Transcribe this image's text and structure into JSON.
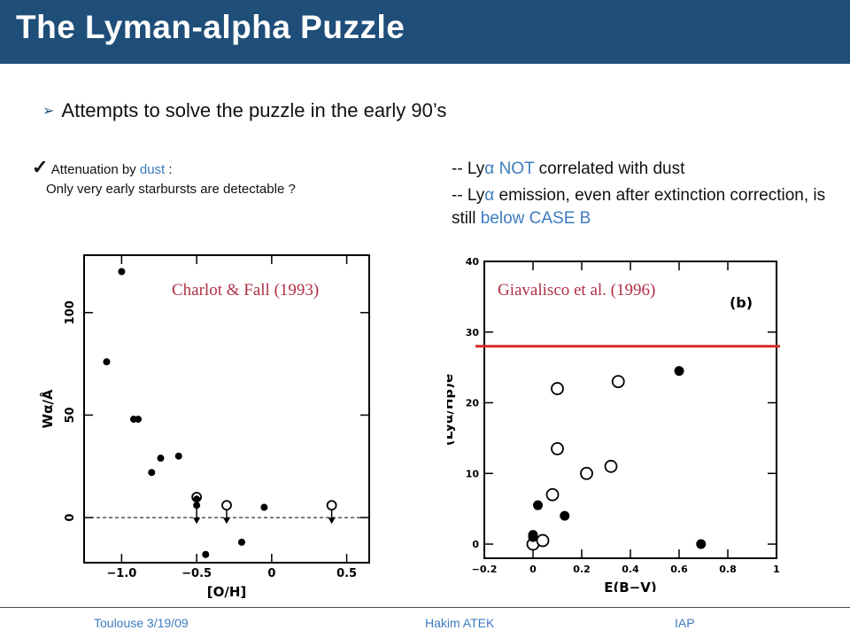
{
  "slide": {
    "title": "The Lyman-alpha Puzzle",
    "bullet": "Attempts to solve the puzzle in the early 90’s",
    "left_note": {
      "line1_prefix": "Attenuation by ",
      "line1_accent": "dust",
      "line1_suffix": " :",
      "line2": "Only very early starbursts are detectable ?"
    },
    "right_notes": {
      "item1_prefix": "-- Ly",
      "item1_accent": "NOT",
      "item1_suffix": " correlated with dust",
      "item2_prefix": "-- Ly",
      "item2_suffix": " emission, even after extinction correction, is still ",
      "item2_accent": "below CASE B",
      "alpha": "α"
    },
    "captions": {
      "left": "Charlot & Fall (1993)",
      "right": "Giavalisco et al. (1996)"
    },
    "footer": {
      "left": "Toulouse 3/19/09",
      "center": "Hakim ATEK",
      "right": "IAP"
    },
    "colors": {
      "header": "#1f4e79",
      "accent": "#3d7cbf",
      "caption": "#b03045",
      "case_b_line": "#d62b2b"
    }
  },
  "chart_data": [
    {
      "type": "scatter",
      "xlabel": "[O/H]",
      "ylabel": "Wα/Å",
      "xlim": [
        -1.25,
        0.65
      ],
      "ylim": [
        -22,
        128
      ],
      "xticks": [
        -1.0,
        -0.5,
        0,
        0.5
      ],
      "xtick_labels": [
        "−1.0",
        "−0.5",
        "0",
        "0.5"
      ],
      "yticks": [
        0,
        50,
        100
      ],
      "ytick_labels": [
        "0",
        "50",
        "100"
      ],
      "dashed_zero_line": true,
      "filled": [
        [
          -1.0,
          120
        ],
        [
          -1.1,
          76
        ],
        [
          -0.92,
          48
        ],
        [
          -0.89,
          48
        ],
        [
          -0.8,
          22
        ],
        [
          -0.74,
          29
        ],
        [
          -0.62,
          30
        ],
        [
          -0.5,
          6
        ],
        [
          -0.5,
          9
        ],
        [
          -0.44,
          -18
        ],
        [
          -0.2,
          -12
        ],
        [
          -0.05,
          5
        ]
      ],
      "open": [
        [
          -0.5,
          10
        ],
        [
          -0.3,
          6
        ],
        [
          0.4,
          6
        ]
      ],
      "upper_limits": [
        [
          -0.5,
          6
        ],
        [
          -0.3,
          6
        ],
        [
          0.4,
          6
        ]
      ]
    },
    {
      "type": "scatter",
      "xlabel": "E(B−V)",
      "ylabel": "(Lyα/Hβ)e",
      "panel_label": "(b)",
      "xlim": [
        -0.2,
        1.0
      ],
      "ylim": [
        -2,
        40
      ],
      "xticks": [
        -0.2,
        0,
        0.2,
        0.4,
        0.6,
        0.8,
        1
      ],
      "xtick_labels": [
        "−0.2",
        "0",
        "0.2",
        "0.4",
        "0.6",
        "0.8",
        "1"
      ],
      "yticks": [
        0,
        10,
        20,
        30,
        40
      ],
      "ytick_labels": [
        "0",
        "10",
        "20",
        "30",
        "40"
      ],
      "case_b_value": 28,
      "filled": [
        [
          0.0,
          1
        ],
        [
          0.0,
          1.3
        ],
        [
          0.02,
          5.5
        ],
        [
          0.13,
          4
        ],
        [
          0.6,
          24.5
        ],
        [
          0.69,
          0
        ]
      ],
      "open": [
        [
          0.0,
          0
        ],
        [
          0.04,
          0.5
        ],
        [
          0.08,
          7
        ],
        [
          0.1,
          22
        ],
        [
          0.1,
          13.5
        ],
        [
          0.22,
          10
        ],
        [
          0.32,
          11
        ],
        [
          0.35,
          23
        ]
      ]
    }
  ]
}
